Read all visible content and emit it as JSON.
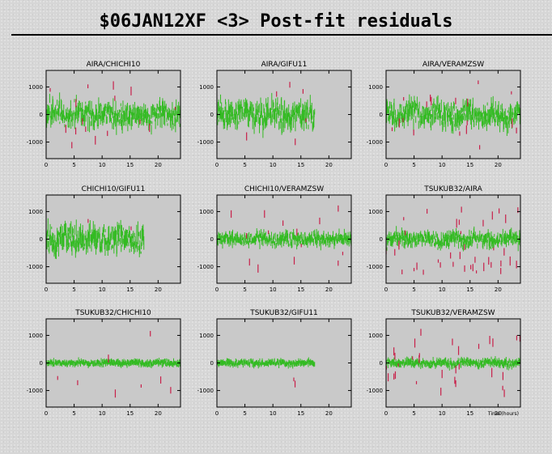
{
  "title": "$06JAN12XF <3> Post-fit residuals",
  "colors": {
    "good": "#33bb22",
    "outlier": "#c8204a"
  },
  "chart_data": [
    {
      "type": "scatter",
      "title": "AIRA/CHICHI10",
      "xlim": [
        0,
        24
      ],
      "ylim": [
        -1600,
        1600
      ],
      "yticks": [
        1000,
        0,
        -1000
      ],
      "xticks": [
        0,
        5,
        10,
        15,
        20
      ],
      "tmax": 24,
      "spread": 300,
      "ypos": [
        -1000,
        0,
        1000
      ],
      "outlier_count": 16,
      "xlabel": ""
    },
    {
      "type": "scatter",
      "title": "AIRA/GIFU11",
      "xlim": [
        0,
        24
      ],
      "ylim": [
        -1600,
        1600
      ],
      "yticks": [
        1000,
        0,
        -1000
      ],
      "xticks": [
        0,
        5,
        10,
        15,
        20
      ],
      "tmax": 17.5,
      "spread": 330,
      "ypos": [
        -1000,
        0,
        1000
      ],
      "outlier_count": 6,
      "xlabel": ""
    },
    {
      "type": "scatter",
      "title": "AIRA/VERAMZSW",
      "xlim": [
        0,
        24
      ],
      "ylim": [
        -1600,
        1600
      ],
      "yticks": [
        1000,
        0,
        -1000
      ],
      "xticks": [
        0,
        5,
        10,
        15,
        20
      ],
      "tmax": 24,
      "spread": 290,
      "ypos": [
        -1000,
        0,
        1000
      ],
      "outlier_count": 18,
      "xlabel": ""
    },
    {
      "type": "scatter",
      "title": "CHICHI10/GIFU11",
      "xlim": [
        0,
        24
      ],
      "ylim": [
        -1600,
        1600
      ],
      "yticks": [
        1000,
        0,
        -1000
      ],
      "xticks": [
        0,
        5,
        10,
        15,
        20
      ],
      "tmax": 17.5,
      "spread": 330,
      "ypos": [
        -1000,
        0,
        1000
      ],
      "outlier_count": 2,
      "xlabel": ""
    },
    {
      "type": "scatter",
      "title": "CHICHI10/VERAMZSW",
      "xlim": [
        0,
        24
      ],
      "ylim": [
        -1600,
        1600
      ],
      "yticks": [
        1000,
        0,
        -1000
      ],
      "xticks": [
        0,
        5,
        10,
        15,
        20
      ],
      "tmax": 24,
      "spread": 160,
      "ypos": [
        -1000,
        0,
        1000
      ],
      "outlier_count": 14,
      "xlabel": ""
    },
    {
      "type": "scatter",
      "title": "TSUKUB32/AIRA",
      "xlim": [
        0,
        24
      ],
      "ylim": [
        -1600,
        1600
      ],
      "yticks": [
        1000,
        0,
        -1000
      ],
      "xticks": [
        0,
        5,
        10,
        15,
        20
      ],
      "tmax": 24,
      "spread": 180,
      "ypos": [
        -1000,
        0,
        1000
      ],
      "outlier_count": 40,
      "xlabel": ""
    },
    {
      "type": "scatter",
      "title": "TSUKUB32/CHICHI10",
      "xlim": [
        0,
        24
      ],
      "ylim": [
        -1600,
        1600
      ],
      "yticks": [
        1000,
        0,
        -1000
      ],
      "xticks": [
        0,
        5,
        10,
        15,
        20
      ],
      "tmax": 24,
      "spread": 70,
      "ypos": [
        -1000,
        0,
        1000
      ],
      "outlier_count": 8,
      "xlabel": ""
    },
    {
      "type": "scatter",
      "title": "TSUKUB32/GIFU11",
      "xlim": [
        0,
        24
      ],
      "ylim": [
        -1600,
        1600
      ],
      "yticks": [
        1000,
        0,
        -1000
      ],
      "xticks": [
        0,
        5,
        10,
        15,
        20
      ],
      "tmax": 17.5,
      "spread": 70,
      "ypos": [
        -1000,
        0,
        1000
      ],
      "outlier_count": 2,
      "xlabel": ""
    },
    {
      "type": "scatter",
      "title": "TSUKUB32/VERAMZSW",
      "xlim": [
        0,
        24
      ],
      "ylim": [
        -1600,
        1600
      ],
      "yticks": [
        1000,
        0,
        -1000
      ],
      "xticks": [
        0,
        5,
        10,
        15,
        20
      ],
      "tmax": 24,
      "spread": 90,
      "ypos": [
        -1000,
        0,
        1000
      ],
      "outlier_count": 30,
      "xlabel": "Time (hours)"
    }
  ]
}
